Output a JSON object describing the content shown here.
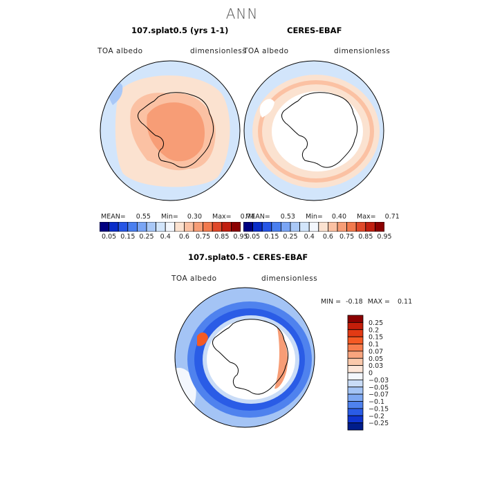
{
  "title": "ANN",
  "panels": {
    "model": {
      "title": "107.splat0.5 (yrs 1-1)",
      "field_label": "TOA albedo",
      "units_label": "dimensionless",
      "stats": {
        "mean_label": "MEAN=",
        "mean": "0.55",
        "min_label": "Min=",
        "min": "0.30",
        "max_label": "Max=",
        "max": "0.74"
      }
    },
    "obs": {
      "title": "CERES-EBAF",
      "field_label": "TOA albedo",
      "units_label": "dimensionless",
      "stats": {
        "mean_label": "MEAN=",
        "mean": "0.53",
        "min_label": "Min=",
        "min": "0.40",
        "max_label": "Max=",
        "max": "0.71"
      }
    },
    "diff": {
      "title": "107.splat0.5 - CERES-EBAF",
      "field_label": "TOA albedo",
      "units_label": "dimensionless",
      "stats": {
        "min_label": "MIN =",
        "min": "-0.18",
        "max_label": "MAX =",
        "max": "0.11"
      }
    }
  },
  "chart_data": [
    {
      "type": "heatmap",
      "projection": "south-polar-stereographic",
      "title": "107.splat0.5 (yrs 1-1)",
      "field": "TOA albedo",
      "units": "dimensionless",
      "mean": 0.55,
      "min": 0.3,
      "max": 0.74,
      "colorbar": {
        "levels": [
          0.05,
          0.15,
          0.25,
          0.4,
          0.6,
          0.75,
          0.85,
          0.95
        ],
        "tick_labels": [
          "0.05",
          "0.15",
          "0.25",
          "0.4",
          "0.6",
          "0.75",
          "0.85",
          "0.95"
        ],
        "colors": [
          "#000080",
          "#0a2dc9",
          "#2756e6",
          "#4a7ff0",
          "#7aa5f5",
          "#a9c8f7",
          "#d2e5fb",
          "#f3f7fd",
          "#fbe2d0",
          "#fbc1a3",
          "#f79d76",
          "#f27a4e",
          "#e0492a",
          "#c11f10",
          "#8b0000"
        ]
      }
    },
    {
      "type": "heatmap",
      "projection": "south-polar-stereographic",
      "title": "CERES-EBAF",
      "field": "TOA albedo",
      "units": "dimensionless",
      "mean": 0.53,
      "min": 0.4,
      "max": 0.71,
      "colorbar": {
        "levels": [
          0.05,
          0.15,
          0.25,
          0.4,
          0.6,
          0.75,
          0.85,
          0.95
        ],
        "tick_labels": [
          "0.05",
          "0.15",
          "0.25",
          "0.4",
          "0.6",
          "0.75",
          "0.85",
          "0.95"
        ],
        "colors": [
          "#000080",
          "#0a2dc9",
          "#2756e6",
          "#4a7ff0",
          "#7aa5f5",
          "#a9c8f7",
          "#d2e5fb",
          "#f3f7fd",
          "#fbe2d0",
          "#fbc1a3",
          "#f79d76",
          "#f27a4e",
          "#e0492a",
          "#c11f10",
          "#8b0000"
        ]
      }
    },
    {
      "type": "heatmap",
      "projection": "south-polar-stereographic",
      "title": "107.splat0.5 - CERES-EBAF",
      "field": "TOA albedo",
      "units": "dimensionless",
      "min": -0.18,
      "max": 0.11,
      "colorbar": {
        "levels": [
          0.25,
          0.2,
          0.15,
          0.1,
          0.07,
          0.05,
          0.03,
          0,
          -0.03,
          -0.05,
          -0.07,
          -0.1,
          -0.15,
          -0.2,
          -0.25
        ],
        "tick_labels": [
          "0.25",
          "0.2",
          "0.15",
          "0.1",
          "0.07",
          "0.05",
          "0.03",
          "0",
          "−0.03",
          "−0.05",
          "−0.07",
          "−0.1",
          "−0.15",
          "−0.2",
          "−0.25"
        ],
        "colors": [
          "#8b0000",
          "#c41e0a",
          "#e23a14",
          "#f55a24",
          "#f87d4d",
          "#f9a57e",
          "#fbc9ab",
          "#fde6d8",
          "#f3f7fd",
          "#c9dcf7",
          "#a4c4f5",
          "#7ea8f2",
          "#4f82ee",
          "#2a5ce6",
          "#0f35cf",
          "#001d8a"
        ]
      }
    }
  ]
}
